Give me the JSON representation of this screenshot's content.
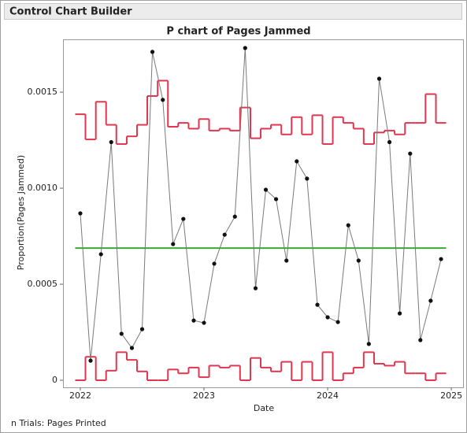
{
  "header": {
    "title": "Control Chart Builder"
  },
  "footer": {
    "text": "n Trials: Pages Printed"
  },
  "chart_data": {
    "type": "p-chart",
    "title": "P chart of Pages Jammed",
    "x_label": "Date",
    "y_label": "Proportion(Pages Jammed)",
    "x": [
      2022.0,
      2022.083,
      2022.167,
      2022.25,
      2022.333,
      2022.417,
      2022.5,
      2022.583,
      2022.667,
      2022.75,
      2022.833,
      2022.917,
      2023.0,
      2023.083,
      2023.167,
      2023.25,
      2023.333,
      2023.417,
      2023.5,
      2023.583,
      2023.667,
      2023.75,
      2023.833,
      2023.917,
      2024.0,
      2024.083,
      2024.167,
      2024.25,
      2024.333,
      2024.417,
      2024.5,
      2024.583,
      2024.667,
      2024.75,
      2024.833,
      2024.917
    ],
    "values": [
      0.000869,
      0.000102,
      0.000656,
      0.00124,
      0.000242,
      0.000168,
      0.000266,
      0.00171,
      0.00146,
      0.000709,
      0.00084,
      0.000311,
      0.000299,
      0.000607,
      0.000758,
      0.000852,
      0.00173,
      0.000479,
      0.000992,
      0.000943,
      0.000623,
      0.00114,
      0.00105,
      0.000393,
      0.000328,
      0.000303,
      0.000807,
      0.000623,
      0.000189,
      0.00157,
      0.00124,
      0.000348,
      0.00118,
      0.000209,
      0.000414,
      0.000631
    ],
    "ucl": [
      0.001385,
      0.001254,
      0.00145,
      0.00133,
      0.00123,
      0.00127,
      0.00133,
      0.00148,
      0.00156,
      0.00132,
      0.00134,
      0.00131,
      0.00136,
      0.0013,
      0.00131,
      0.0013,
      0.00142,
      0.00126,
      0.00131,
      0.00133,
      0.00128,
      0.00137,
      0.00128,
      0.00138,
      0.00123,
      0.00137,
      0.00134,
      0.00131,
      0.00123,
      0.00129,
      0.0013,
      0.00128,
      0.00134,
      0.00134,
      0.00149,
      0.00134
    ],
    "lcl": [
      0,
      0.000122,
      0,
      5e-05,
      0.000146,
      0.000106,
      4.6e-05,
      0,
      0,
      5.6e-05,
      3.6e-05,
      6.6e-05,
      1.6e-05,
      7.6e-05,
      6.6e-05,
      7.6e-05,
      0,
      0.000116,
      6.6e-05,
      4.6e-05,
      9.6e-05,
      0,
      9.6e-05,
      0,
      0.000146,
      0,
      3.6e-05,
      6.6e-05,
      0.000146,
      8.6e-05,
      7.6e-05,
      9.6e-05,
      3.6e-05,
      3.6e-05,
      0,
      3.6e-05
    ],
    "center": 0.000688,
    "point_color": "#111111",
    "line_color": "#7a7a7a",
    "limit_color": "#e0364f",
    "center_color": "#3aaa35",
    "xlim": [
      2021.86,
      2025.095
    ],
    "xticks": [
      2022,
      2023,
      2024,
      2025
    ],
    "ylim": [
      -3.69e-05,
      0.001775
    ],
    "yticks": [
      0,
      0.0005,
      {
        "value": 0.001,
        "label": "0.0010"
      },
      0.0015
    ]
  }
}
